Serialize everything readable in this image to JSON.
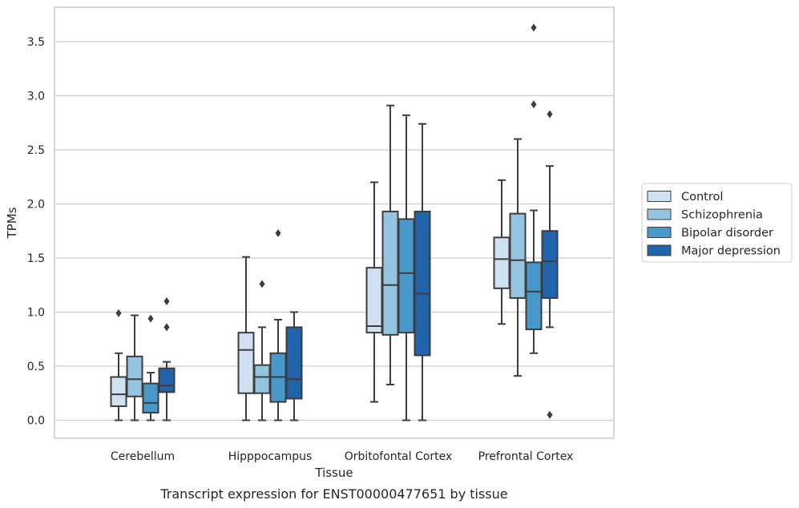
{
  "caption": "Transcript expression for ENST00000477651 by tissue",
  "chart_data": {
    "type": "box",
    "xlabel": "Tissue",
    "ylabel": "TPMs",
    "ylim": [
      -0.18,
      3.85
    ],
    "yticks": [
      0.0,
      0.5,
      1.0,
      1.5,
      2.0,
      2.5,
      3.0,
      3.5
    ],
    "ytick_labels": [
      "0.0",
      "0.5",
      "1.0",
      "1.5",
      "2.0",
      "2.5",
      "3.0",
      "3.5"
    ],
    "grid": "horizontal",
    "legend_position": "right",
    "categories": [
      "Cerebellum",
      "Hipppocampus",
      "Orbitofontal Cortex",
      "Prefrontal Cortex"
    ],
    "series": [
      {
        "name": "Control",
        "color": "#d0e1f2",
        "boxes": [
          {
            "whislo": 0.0,
            "q1": 0.13,
            "med": 0.24,
            "q3": 0.4,
            "whishi": 0.62,
            "fliers": [
              0.99
            ]
          },
          {
            "whislo": 0.0,
            "q1": 0.25,
            "med": 0.65,
            "q3": 0.81,
            "whishi": 1.51,
            "fliers": []
          },
          {
            "whislo": 0.17,
            "q1": 0.81,
            "med": 0.87,
            "q3": 1.41,
            "whishi": 2.2,
            "fliers": []
          },
          {
            "whislo": 0.89,
            "q1": 1.22,
            "med": 1.49,
            "q3": 1.69,
            "whishi": 2.22,
            "fliers": []
          }
        ]
      },
      {
        "name": "Schizophrenia",
        "color": "#94c4df",
        "boxes": [
          {
            "whislo": 0.0,
            "q1": 0.22,
            "med": 0.38,
            "q3": 0.59,
            "whishi": 0.97,
            "fliers": []
          },
          {
            "whislo": 0.0,
            "q1": 0.25,
            "med": 0.4,
            "q3": 0.51,
            "whishi": 0.86,
            "fliers": [
              1.26
            ]
          },
          {
            "whislo": 0.33,
            "q1": 0.79,
            "med": 1.25,
            "q3": 1.93,
            "whishi": 2.91,
            "fliers": []
          },
          {
            "whislo": 0.41,
            "q1": 1.13,
            "med": 1.48,
            "q3": 1.91,
            "whishi": 2.6,
            "fliers": []
          }
        ]
      },
      {
        "name": "Bipolar disorder",
        "color": "#4a98c9",
        "boxes": [
          {
            "whislo": 0.0,
            "q1": 0.07,
            "med": 0.16,
            "q3": 0.34,
            "whishi": 0.44,
            "fliers": [
              0.94
            ]
          },
          {
            "whislo": 0.0,
            "q1": 0.17,
            "med": 0.4,
            "q3": 0.62,
            "whishi": 0.93,
            "fliers": [
              1.73
            ]
          },
          {
            "whislo": 0.0,
            "q1": 0.81,
            "med": 1.36,
            "q3": 1.86,
            "whishi": 2.82,
            "fliers": []
          },
          {
            "whislo": 0.62,
            "q1": 0.84,
            "med": 1.19,
            "q3": 1.46,
            "whishi": 1.94,
            "fliers": [
              2.92,
              3.63
            ]
          }
        ]
      },
      {
        "name": "Major depression",
        "color": "#2164ab",
        "boxes": [
          {
            "whislo": 0.0,
            "q1": 0.26,
            "med": 0.32,
            "q3": 0.48,
            "whishi": 0.54,
            "fliers": [
              0.86,
              1.1
            ]
          },
          {
            "whislo": 0.0,
            "q1": 0.2,
            "med": 0.38,
            "q3": 0.86,
            "whishi": 1.0,
            "fliers": []
          },
          {
            "whislo": 0.0,
            "q1": 0.6,
            "med": 1.17,
            "q3": 1.93,
            "whishi": 2.74,
            "fliers": []
          },
          {
            "whislo": 0.86,
            "q1": 1.13,
            "med": 1.47,
            "q3": 1.75,
            "whishi": 2.35,
            "fliers": [
              0.05,
              2.83
            ]
          }
        ]
      }
    ]
  }
}
